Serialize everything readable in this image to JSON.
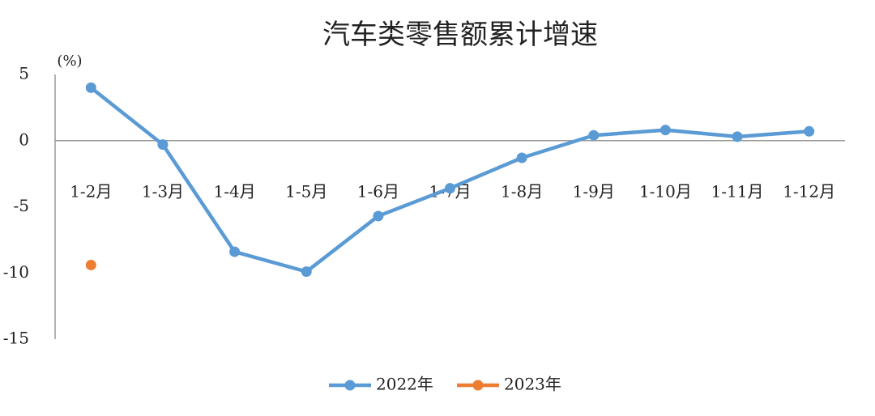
{
  "chart_data": {
    "type": "line",
    "title": "汽车类零售额累计增速",
    "ylabel": "(%)",
    "categories": [
      "1-2月",
      "1-3月",
      "1-4月",
      "1-5月",
      "1-6月",
      "1-7月",
      "1-8月",
      "1-9月",
      "1-10月",
      "1-11月",
      "1-12月"
    ],
    "series": [
      {
        "name": "2022年",
        "color": "#5b9bd5",
        "values": [
          4.0,
          -0.3,
          -8.4,
          -9.9,
          -5.7,
          -3.6,
          -1.3,
          0.4,
          0.8,
          0.3,
          0.7
        ]
      },
      {
        "name": "2023年",
        "color": "#ed7d31",
        "values": [
          -9.4,
          null,
          null,
          null,
          null,
          null,
          null,
          null,
          null,
          null,
          null
        ]
      }
    ],
    "ylim": [
      -15,
      5
    ],
    "yticks": [
      -15,
      -10,
      -5,
      0,
      5
    ],
    "legend": "bottom"
  }
}
